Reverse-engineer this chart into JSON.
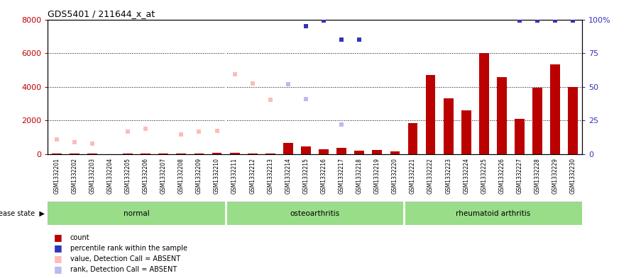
{
  "title": "GDS5401 / 211644_x_at",
  "samples": [
    "GSM1332201",
    "GSM1332202",
    "GSM1332203",
    "GSM1332204",
    "GSM1332205",
    "GSM1332206",
    "GSM1332207",
    "GSM1332208",
    "GSM1332209",
    "GSM1332210",
    "GSM1332211",
    "GSM1332212",
    "GSM1332213",
    "GSM1332214",
    "GSM1332215",
    "GSM1332216",
    "GSM1332217",
    "GSM1332218",
    "GSM1332219",
    "GSM1332220",
    "GSM1332221",
    "GSM1332222",
    "GSM1332223",
    "GSM1332224",
    "GSM1332225",
    "GSM1332226",
    "GSM1332227",
    "GSM1332228",
    "GSM1332229",
    "GSM1332230"
  ],
  "count_values": [
    55,
    50,
    45,
    25,
    45,
    45,
    35,
    40,
    45,
    90,
    70,
    60,
    55,
    680,
    480,
    280,
    380,
    230,
    250,
    180,
    1850,
    4700,
    3300,
    2600,
    6000,
    4600,
    2100,
    3950,
    5350,
    4000
  ],
  "percentile_rank_pct": [
    null,
    null,
    null,
    null,
    null,
    null,
    null,
    null,
    null,
    null,
    null,
    null,
    null,
    null,
    95,
    99,
    85,
    85,
    null,
    null,
    null,
    null,
    null,
    null,
    null,
    null,
    99,
    99,
    99,
    99
  ],
  "absent_value": [
    900,
    700,
    620,
    null,
    1350,
    1500,
    null,
    1200,
    1350,
    1380,
    4750,
    4200,
    3250,
    null,
    null,
    null,
    null,
    null,
    null,
    null,
    null,
    null,
    null,
    null,
    null,
    null,
    null,
    null,
    null,
    null
  ],
  "absent_rank_pct": [
    null,
    null,
    null,
    null,
    null,
    null,
    null,
    null,
    null,
    null,
    null,
    null,
    null,
    52,
    41,
    null,
    22,
    null,
    null,
    null,
    null,
    null,
    null,
    null,
    null,
    null,
    null,
    null,
    null,
    null
  ],
  "groups": [
    {
      "label": "normal",
      "start": 0,
      "end": 9
    },
    {
      "label": "osteoarthritis",
      "start": 10,
      "end": 19
    },
    {
      "label": "rheumatoid arthritis",
      "start": 20,
      "end": 29
    }
  ],
  "ylim_left": [
    0,
    8000
  ],
  "ylim_right": [
    0,
    100
  ],
  "yticks_left": [
    0,
    2000,
    4000,
    6000,
    8000
  ],
  "yticks_right": [
    0,
    25,
    50,
    75,
    100
  ],
  "bar_color": "#bb0000",
  "percentile_color": "#3333bb",
  "absent_value_color": "#ffbbbb",
  "absent_rank_color": "#bbbbee",
  "group_color": "#88cc77",
  "disease_label": "disease state",
  "legend_items": [
    {
      "label": "count",
      "color": "#bb0000"
    },
    {
      "label": "percentile rank within the sample",
      "color": "#3333bb"
    },
    {
      "label": "value, Detection Call = ABSENT",
      "color": "#ffbbbb"
    },
    {
      "label": "rank, Detection Call = ABSENT",
      "color": "#bbbbee"
    }
  ],
  "tick_bg_color": "#cccccc",
  "disease_bar_color": "#99dd88",
  "group_border_color": "#ffffff"
}
